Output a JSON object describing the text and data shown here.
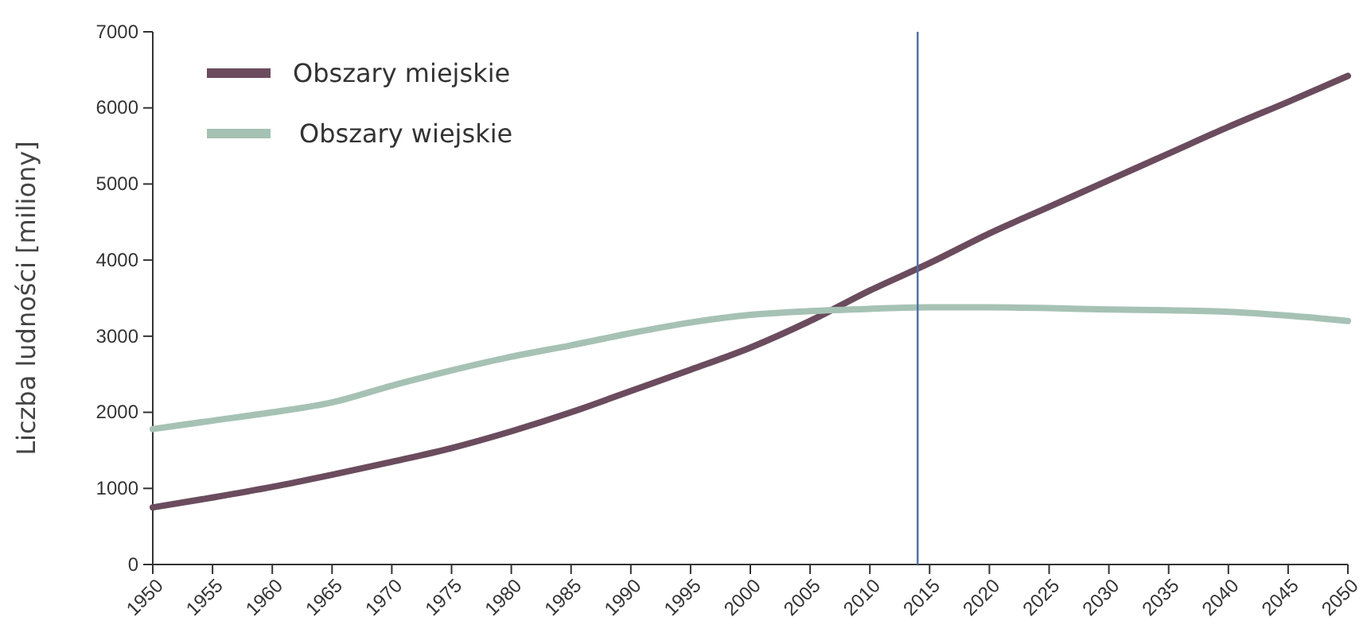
{
  "chart_data": {
    "type": "line",
    "ylabel": "Liczba ludności [miliony]",
    "x": [
      1950,
      1955,
      1960,
      1965,
      1970,
      1975,
      1980,
      1985,
      1990,
      1995,
      2000,
      2005,
      2010,
      2015,
      2020,
      2025,
      2030,
      2035,
      2040,
      2045,
      2050
    ],
    "series": [
      {
        "name": "Obszary miejskie",
        "color": "#6b4c5e",
        "values": [
          750,
          880,
          1020,
          1180,
          1350,
          1530,
          1750,
          2000,
          2280,
          2560,
          2850,
          3200,
          3600,
          3960,
          4350,
          4700,
          5050,
          5400,
          5750,
          6080,
          6420
        ]
      },
      {
        "name": "Obszary wiejskie",
        "color": "#a6c2b4",
        "values": [
          1780,
          1890,
          2000,
          2130,
          2350,
          2550,
          2730,
          2880,
          3040,
          3180,
          3280,
          3330,
          3360,
          3380,
          3380,
          3370,
          3350,
          3340,
          3320,
          3270,
          3200
        ]
      }
    ],
    "xlim": [
      1950,
      2050
    ],
    "xticks": [
      1950,
      1955,
      1960,
      1965,
      1970,
      1975,
      1980,
      1985,
      1990,
      1995,
      2000,
      2005,
      2010,
      2015,
      2020,
      2025,
      2030,
      2035,
      2040,
      2045,
      2050
    ],
    "ylim": [
      0,
      7000
    ],
    "yticks": [
      0,
      1000,
      2000,
      3000,
      4000,
      5000,
      6000,
      7000
    ],
    "ref_lines": [
      {
        "axis": "x",
        "value": 2014,
        "color": "#4a6fa5"
      }
    ],
    "grid": false,
    "legend": "top left",
    "marker": "none",
    "line_style": "solid"
  }
}
